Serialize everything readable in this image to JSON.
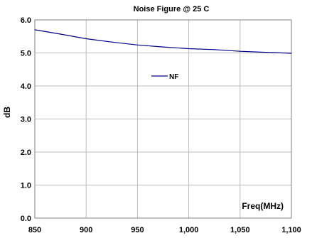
{
  "chart_data": {
    "type": "line",
    "title": "Noise Figure @ 25 C",
    "xlabel": "Freq(MHz)",
    "ylabel": "dB",
    "xlim": [
      850,
      1100
    ],
    "ylim": [
      0,
      6
    ],
    "x_ticks": [
      850,
      900,
      950,
      1000,
      1050,
      1100
    ],
    "x_tick_labels": [
      "850",
      "900",
      "950",
      "1,000",
      "1,050",
      "1,100"
    ],
    "y_ticks": [
      0,
      1,
      2,
      3,
      4,
      5,
      6
    ],
    "y_tick_labels": [
      "0.0",
      "1.0",
      "2.0",
      "3.0",
      "4.0",
      "5.0",
      "6.0"
    ],
    "grid": true,
    "legend_position": "center",
    "series": [
      {
        "name": "NF",
        "color": "#00008b",
        "x": [
          850,
          875,
          900,
          925,
          950,
          975,
          1000,
          1025,
          1050,
          1075,
          1100
        ],
        "y": [
          5.7,
          5.57,
          5.43,
          5.33,
          5.24,
          5.18,
          5.13,
          5.1,
          5.05,
          5.02,
          4.99
        ]
      }
    ]
  }
}
